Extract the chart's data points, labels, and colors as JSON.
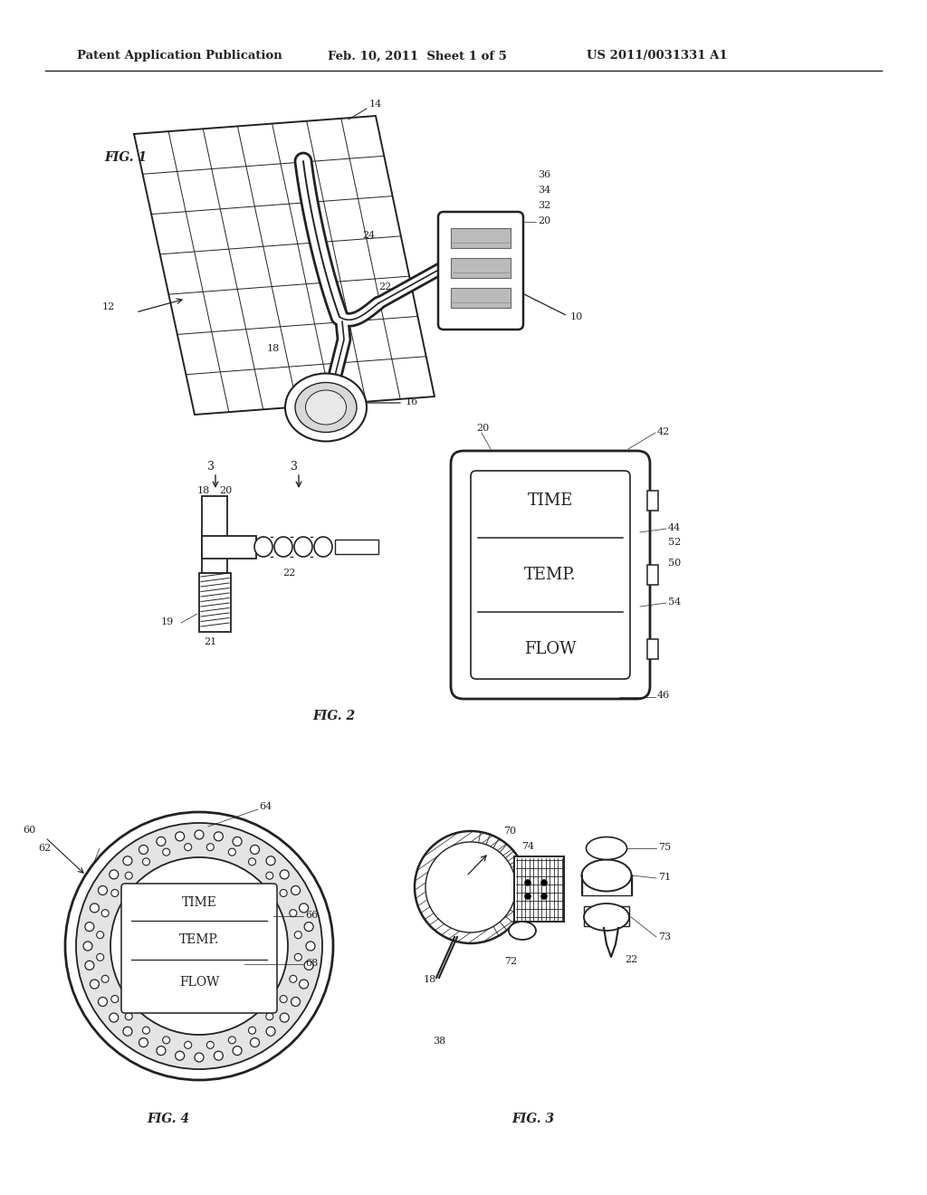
{
  "background_color": "#ffffff",
  "header_text": "Patent Application Publication",
  "header_date": "Feb. 10, 2011  Sheet 1 of 5",
  "header_patent": "US 2011/0031331 A1",
  "fig1_label": "FIG. 1",
  "fig2_label": "FIG. 2",
  "fig3_label": "FIG. 3",
  "fig4_label": "FIG. 4",
  "line_color": "#222222",
  "text_color": "#222222",
  "time_label": "TIME",
  "temp_label": "TEMP.",
  "flow_label": "FLOW"
}
